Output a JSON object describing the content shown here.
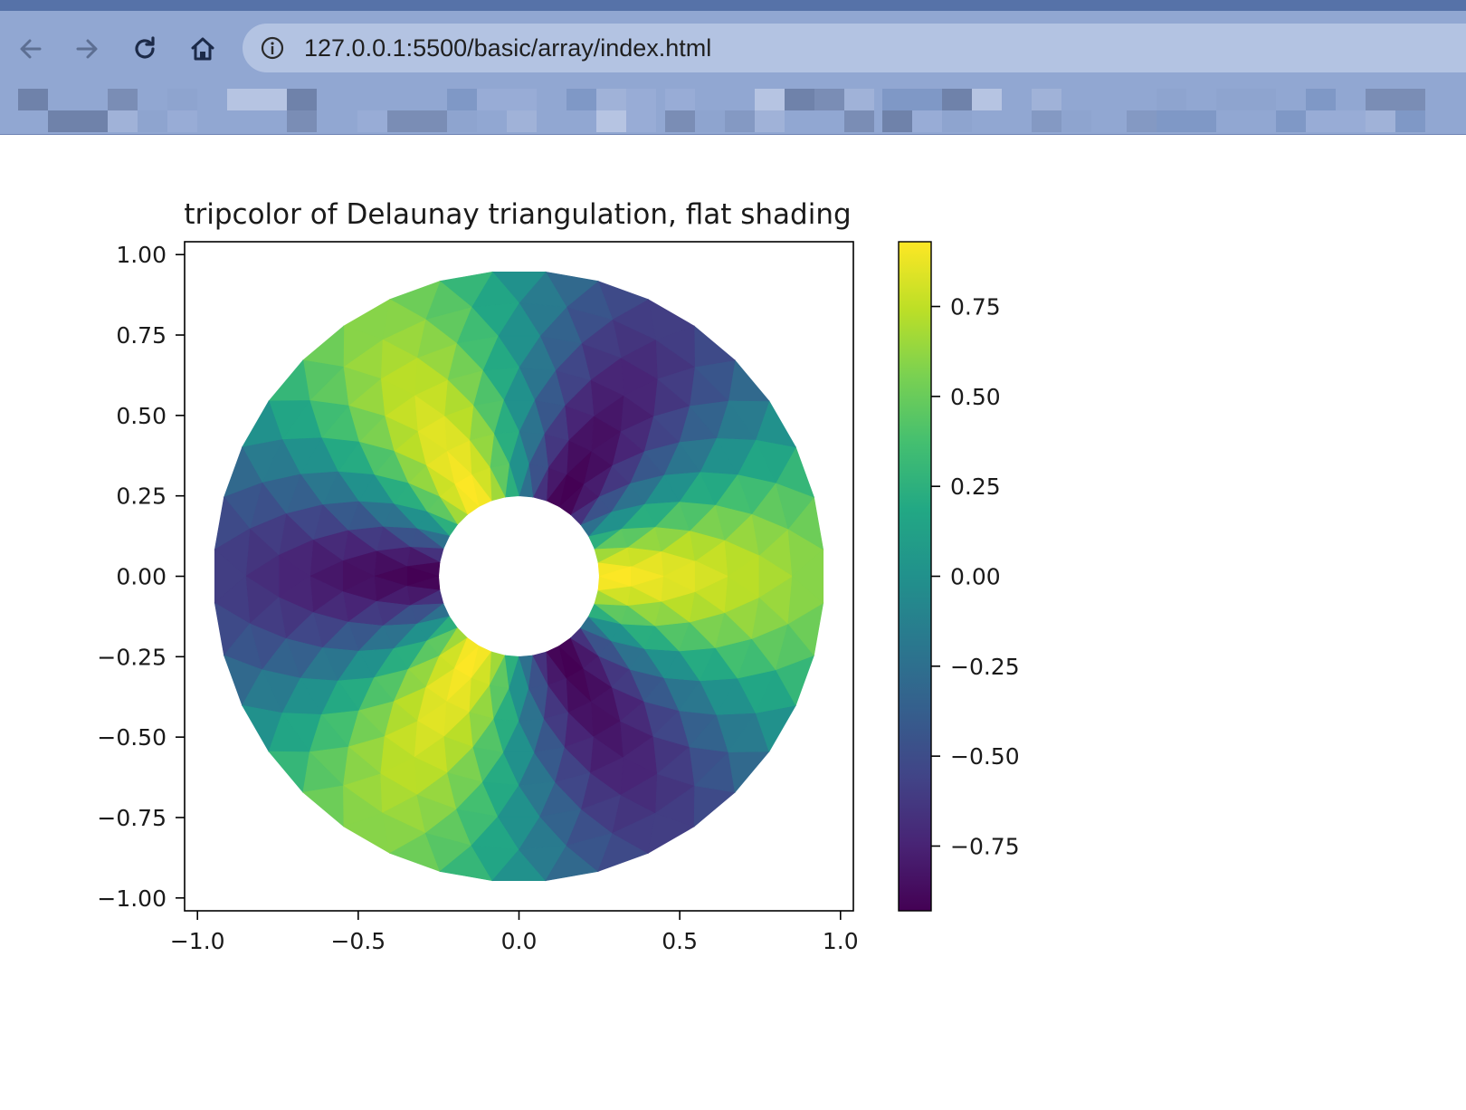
{
  "browser": {
    "url": "127.0.0.1:5500/basic/array/index.html",
    "icons": [
      "back-arrow-icon",
      "forward-arrow-icon",
      "reload-icon",
      "home-icon",
      "info-icon"
    ]
  },
  "chart_data": {
    "type": "heatmap",
    "title": "tripcolor of Delaunay triangulation, flat shading",
    "xlabel": "",
    "ylabel": "",
    "xlim": [
      -1.04,
      1.04
    ],
    "ylim": [
      -1.04,
      1.04
    ],
    "xticks": [
      -1.0,
      -0.5,
      0.0,
      0.5,
      1.0
    ],
    "xtick_labels": [
      "−1.0",
      "−0.5",
      "0.0",
      "0.5",
      "1.0"
    ],
    "yticks": [
      1.0,
      0.75,
      0.5,
      0.25,
      0.0,
      -0.25,
      -0.5,
      -0.75,
      -1.0
    ],
    "ytick_labels": [
      "1.00",
      "0.75",
      "0.50",
      "0.25",
      "0.00",
      "−0.25",
      "−0.50",
      "−0.75",
      "−1.00"
    ],
    "colorbar": {
      "colormap": "viridis",
      "range": [
        -0.93,
        0.93
      ],
      "ticks": [
        0.75,
        0.5,
        0.25,
        0.0,
        -0.25,
        -0.5,
        -0.75
      ],
      "tick_labels": [
        "0.75",
        "0.50",
        "0.25",
        "0.00",
        "−0.25",
        "−0.50",
        "−0.75"
      ]
    },
    "annulus": {
      "inner_radius": 0.25,
      "outer_radius": 0.95,
      "n_radii": 8,
      "n_angles": 36
    },
    "value_function": "z = cos(radius) * cos(3 * angle)",
    "grid": false,
    "legend": "none"
  }
}
